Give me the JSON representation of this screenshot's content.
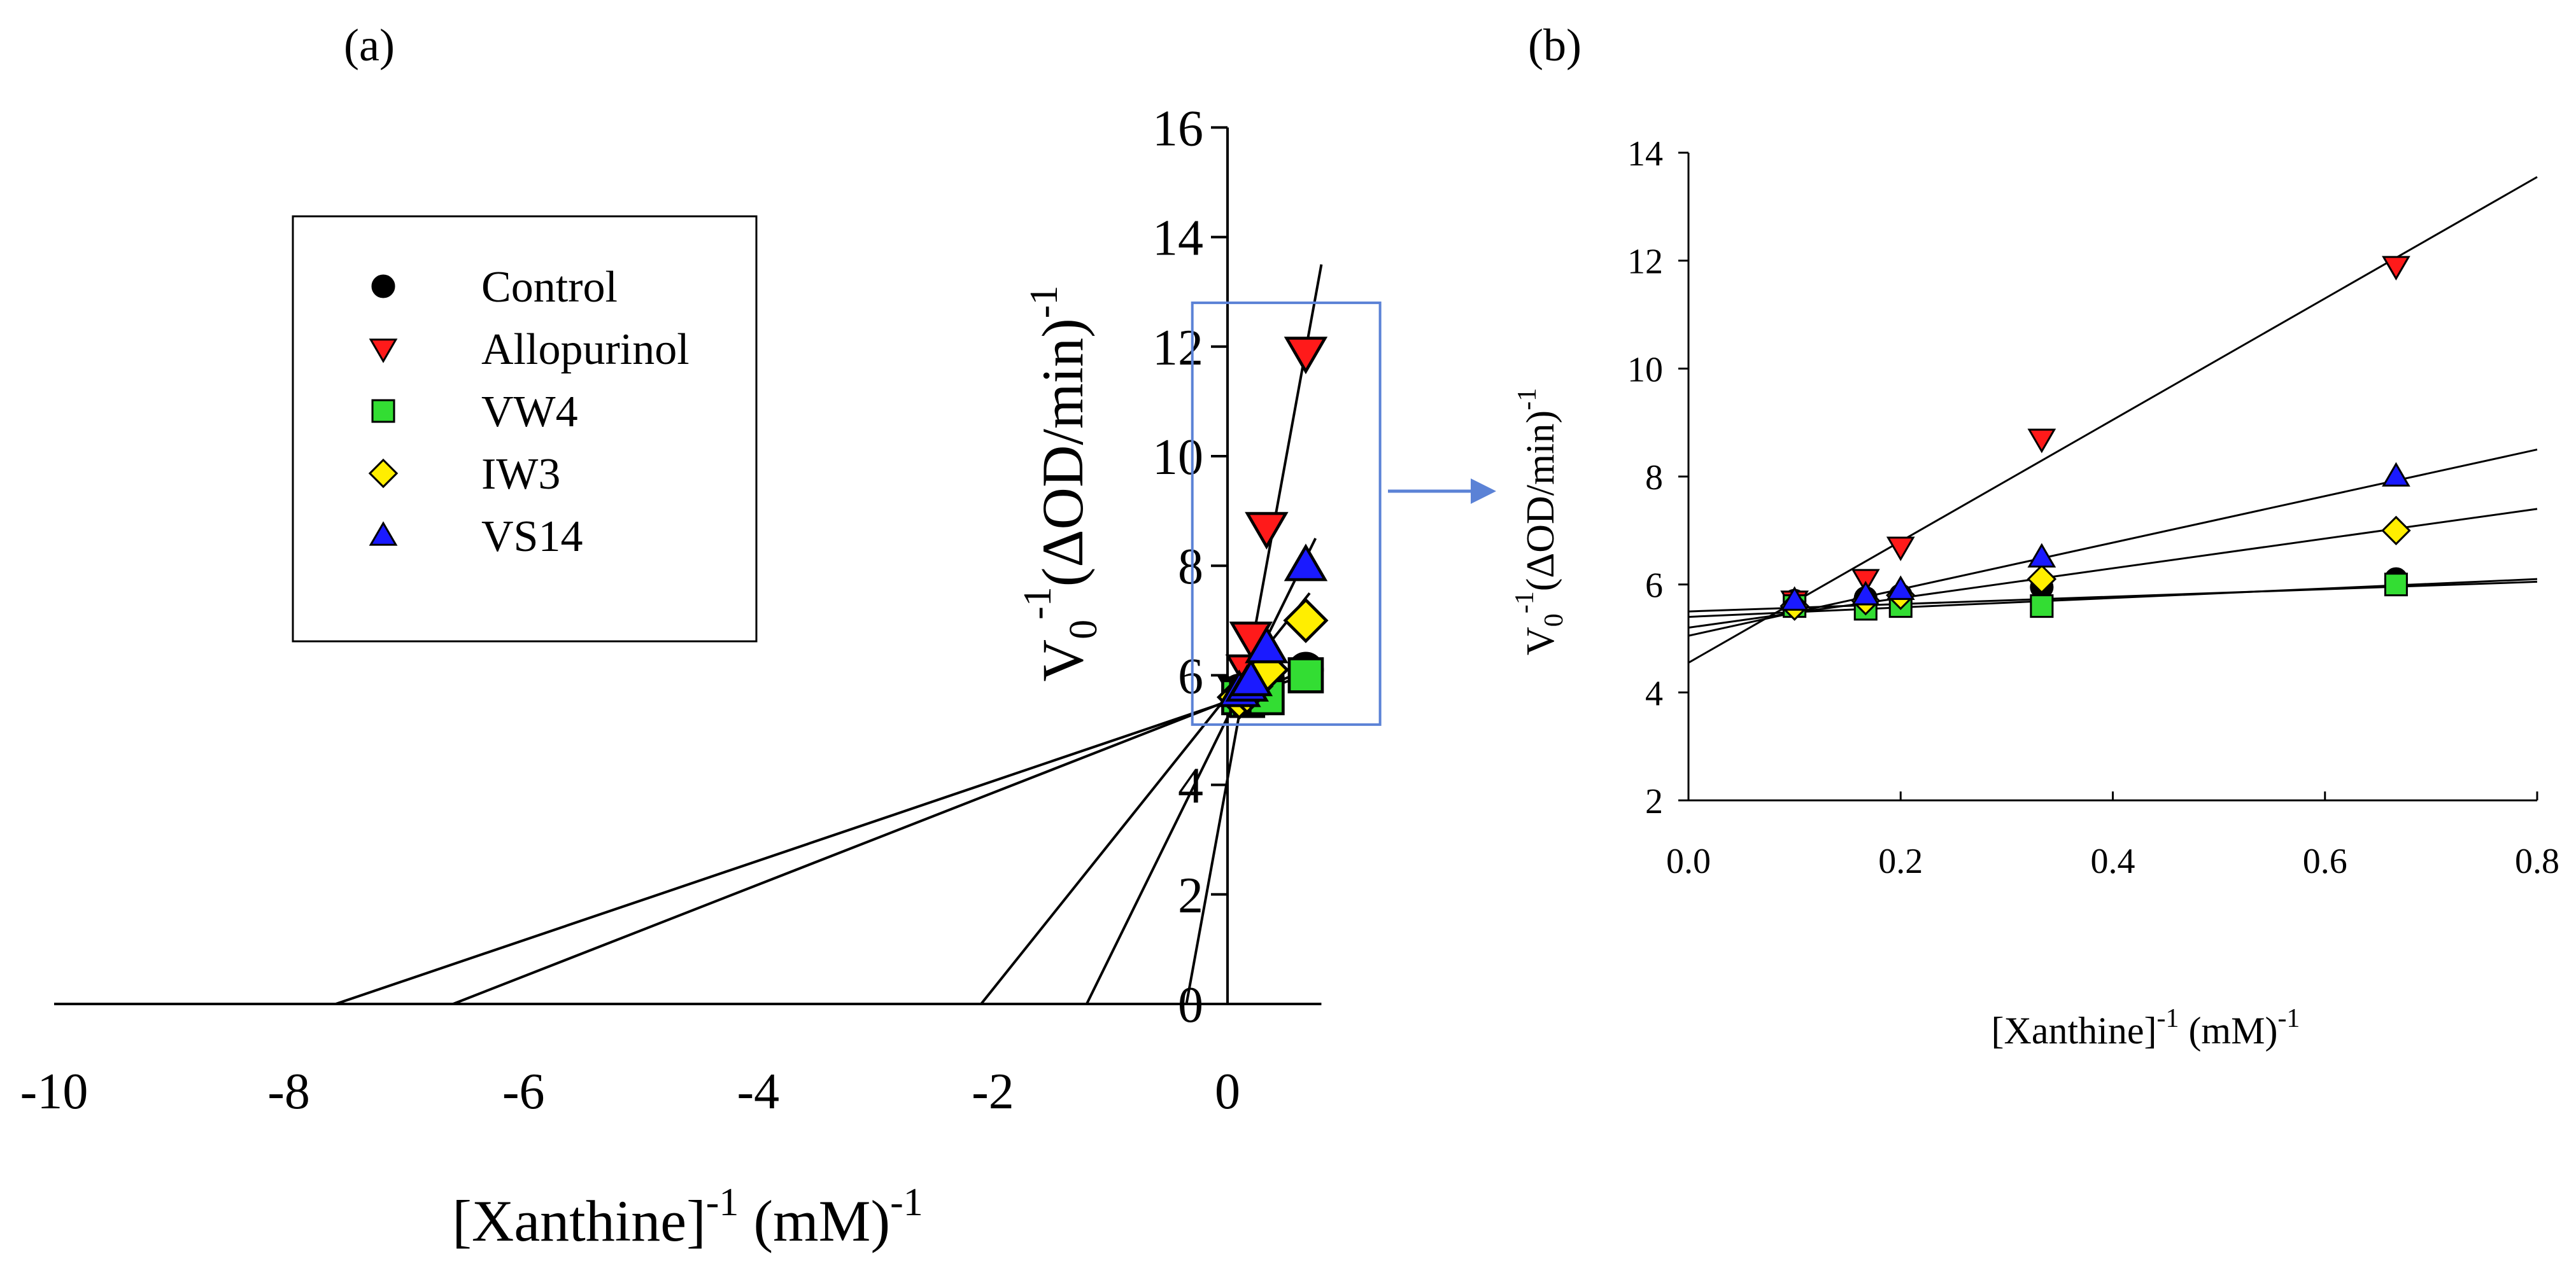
{
  "chart_data": [
    {
      "panel_label": "(a)",
      "type": "scatter",
      "title": "",
      "xlabel_main": "[Xanthine]",
      "xlabel_sup1": "-1",
      "xlabel_unit": " (mM)",
      "xlabel_sup2": "-1",
      "ylabel_main": "V",
      "ylabel_sub": "0",
      "ylabel_sup1": "-1",
      "ylabel_unit": "(ΔOD/min)",
      "ylabel_sup2": "-1",
      "xlim": [
        -10,
        0.8
      ],
      "ylim": [
        0,
        16
      ],
      "xticks": [
        -10,
        -8,
        -6,
        -4,
        -2,
        0
      ],
      "xtick_labels": [
        "-10",
        "-8",
        "-6",
        "-4",
        "-2",
        "0"
      ],
      "yticks": [
        0,
        2,
        4,
        6,
        8,
        10,
        12,
        14,
        16
      ],
      "ytick_labels": [
        "0",
        "2",
        "4",
        "6",
        "8",
        "10",
        "12",
        "14",
        "16"
      ],
      "legend_position": "upper-left",
      "zoom_box_x": [
        -0.3,
        1.3
      ],
      "zoom_box_y": [
        5.1,
        12.8
      ],
      "fit_lines": [
        {
          "name": "VW4",
          "x": [
            -7.6,
            0.8
          ],
          "y": [
            0,
            6.1
          ]
        },
        {
          "name": "Control",
          "x": [
            -6.6,
            0.8
          ],
          "y": [
            0,
            6.2
          ]
        },
        {
          "name": "IW3",
          "x": [
            -2.1,
            0.7
          ],
          "y": [
            0,
            7.5
          ]
        },
        {
          "name": "VS14",
          "x": [
            -1.2,
            0.75
          ],
          "y": [
            0,
            8.5
          ]
        },
        {
          "name": "Allopurinol",
          "x": [
            -0.35,
            0.8
          ],
          "y": [
            0,
            13.5
          ]
        }
      ],
      "series": [
        {
          "name": "Control",
          "marker": "circle",
          "color": "#000000",
          "x": [
            0.1,
            0.167,
            0.2,
            0.333,
            0.667
          ],
          "y": [
            5.7,
            5.75,
            5.8,
            5.95,
            6.1
          ]
        },
        {
          "name": "Allopurinol",
          "marker": "triangle-down",
          "color": "#ff1a1a",
          "x": [
            0.1,
            0.167,
            0.2,
            0.333,
            0.667
          ],
          "y": [
            5.7,
            6.1,
            6.7,
            8.7,
            11.9
          ]
        },
        {
          "name": "VW4",
          "marker": "square",
          "color": "#33dd33",
          "x": [
            0.1,
            0.167,
            0.2,
            0.333,
            0.667
          ],
          "y": [
            5.6,
            5.55,
            5.6,
            5.6,
            6.0
          ]
        },
        {
          "name": "IW3",
          "marker": "diamond",
          "color": "#ffee00",
          "x": [
            0.1,
            0.167,
            0.2,
            0.333,
            0.667
          ],
          "y": [
            5.6,
            5.7,
            5.8,
            6.1,
            7.0
          ]
        },
        {
          "name": "VS14",
          "marker": "triangle-up",
          "color": "#1a1aff",
          "x": [
            0.1,
            0.167,
            0.2,
            0.333,
            0.667
          ],
          "y": [
            5.7,
            5.8,
            5.9,
            6.5,
            8.0
          ]
        }
      ]
    },
    {
      "panel_label": "(b)",
      "type": "scatter",
      "title": "",
      "xlabel_main": "[Xanthine]",
      "xlabel_sup1": "-1",
      "xlabel_unit": " (mM)",
      "xlabel_sup2": "-1",
      "ylabel_main": "V",
      "ylabel_sub": "0",
      "ylabel_sup1": "-1",
      "ylabel_unit": "(ΔOD/min)",
      "ylabel_sup2": "-1",
      "xlim": [
        0,
        0.8
      ],
      "ylim": [
        2,
        14
      ],
      "xticks": [
        0.0,
        0.2,
        0.4,
        0.6,
        0.8
      ],
      "xtick_labels": [
        "0.0",
        "0.2",
        "0.4",
        "0.6",
        "0.8"
      ],
      "yticks": [
        2,
        4,
        6,
        8,
        10,
        12,
        14
      ],
      "ytick_labels": [
        "2",
        "4",
        "6",
        "8",
        "10",
        "12",
        "14"
      ],
      "fit_lines": [
        {
          "name": "Allopurinol",
          "x": [
            0,
            0.8
          ],
          "y": [
            4.55,
            13.55
          ]
        },
        {
          "name": "VS14",
          "x": [
            0,
            0.8
          ],
          "y": [
            5.05,
            8.5
          ]
        },
        {
          "name": "IW3",
          "x": [
            0,
            0.8
          ],
          "y": [
            5.2,
            7.4
          ]
        },
        {
          "name": "Control",
          "x": [
            0,
            0.8
          ],
          "y": [
            5.4,
            6.1
          ]
        },
        {
          "name": "VW4",
          "x": [
            0,
            0.8
          ],
          "y": [
            5.5,
            6.05
          ]
        }
      ],
      "series": [
        {
          "name": "Control",
          "marker": "circle",
          "color": "#000000",
          "x": [
            0.1,
            0.167,
            0.2,
            0.333,
            0.667
          ],
          "y": [
            5.7,
            5.75,
            5.8,
            5.95,
            6.1
          ]
        },
        {
          "name": "Allopurinol",
          "marker": "triangle-down",
          "color": "#ff1a1a",
          "x": [
            0.1,
            0.167,
            0.2,
            0.333,
            0.667
          ],
          "y": [
            5.7,
            6.1,
            6.7,
            8.7,
            11.9
          ]
        },
        {
          "name": "VW4",
          "marker": "square",
          "color": "#33dd33",
          "x": [
            0.1,
            0.167,
            0.2,
            0.333,
            0.667
          ],
          "y": [
            5.6,
            5.55,
            5.6,
            5.6,
            6.0
          ]
        },
        {
          "name": "IW3",
          "marker": "diamond",
          "color": "#ffee00",
          "x": [
            0.1,
            0.167,
            0.2,
            0.333,
            0.667
          ],
          "y": [
            5.6,
            5.7,
            5.8,
            6.1,
            7.0
          ]
        },
        {
          "name": "VS14",
          "marker": "triangle-up",
          "color": "#1a1aff",
          "x": [
            0.1,
            0.167,
            0.2,
            0.333,
            0.667
          ],
          "y": [
            5.7,
            5.8,
            5.9,
            6.5,
            8.0
          ]
        }
      ]
    }
  ],
  "colors": {
    "zoom_box": "#5b82d6",
    "axis": "#000000",
    "fit_line": "#000000",
    "legend_border": "#000000"
  }
}
